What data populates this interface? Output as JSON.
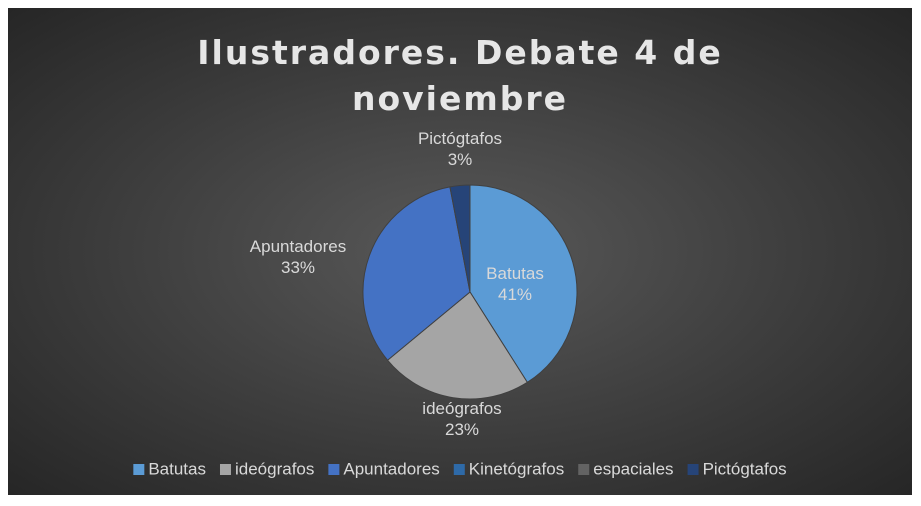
{
  "chart_data": {
    "type": "pie",
    "title": "Ilustradores. Debate 4 de noviembre",
    "categories": [
      "Batutas",
      "ideógrafos",
      "Apuntadores",
      "Kinetógrafos",
      "espaciales",
      "Pictógtafos"
    ],
    "values": [
      41,
      23,
      33,
      0,
      0,
      3
    ],
    "value_labels": [
      "41%",
      "23%",
      "33%",
      null,
      null,
      "3%"
    ],
    "colors": [
      "#5b9bd5",
      "#a5a5a5",
      "#4472c4",
      "#2e6aa8",
      "#636363",
      "#264478"
    ],
    "legend": "bottom"
  }
}
